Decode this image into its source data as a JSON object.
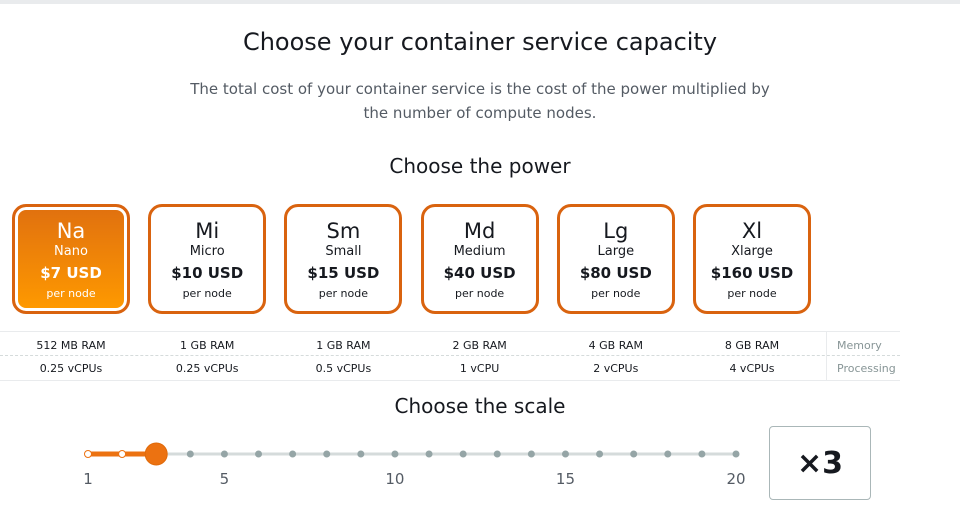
{
  "header": {
    "title": "Choose your container service capacity",
    "description": "The total cost of your container service is the cost of the power multiplied by the number of compute nodes."
  },
  "power": {
    "heading": "Choose the power",
    "selected": 0,
    "options": [
      {
        "abbr": "Na",
        "name": "Nano",
        "price": "$7 USD",
        "unit": "per node",
        "memory": "512 MB RAM",
        "processing": "0.25 vCPUs"
      },
      {
        "abbr": "Mi",
        "name": "Micro",
        "price": "$10 USD",
        "unit": "per node",
        "memory": "1 GB RAM",
        "processing": "0.25 vCPUs"
      },
      {
        "abbr": "Sm",
        "name": "Small",
        "price": "$15 USD",
        "unit": "per node",
        "memory": "1 GB RAM",
        "processing": "0.5 vCPUs"
      },
      {
        "abbr": "Md",
        "name": "Medium",
        "price": "$40 USD",
        "unit": "per node",
        "memory": "2 GB RAM",
        "processing": "1 vCPU"
      },
      {
        "abbr": "Lg",
        "name": "Large",
        "price": "$80 USD",
        "unit": "per node",
        "memory": "4 GB RAM",
        "processing": "2 vCPUs"
      },
      {
        "abbr": "Xl",
        "name": "Xlarge",
        "price": "$160 USD",
        "unit": "per node",
        "memory": "8 GB RAM",
        "processing": "4 vCPUs"
      }
    ],
    "row_labels": {
      "memory": "Memory",
      "processing": "Processing"
    }
  },
  "scale": {
    "heading": "Choose the scale",
    "min": 1,
    "max": 20,
    "value": 3,
    "tick_labels": [
      1,
      5,
      10,
      15,
      20
    ],
    "display": "×3"
  }
}
